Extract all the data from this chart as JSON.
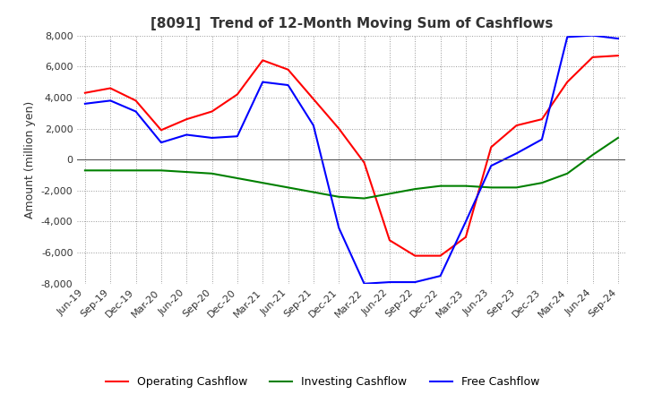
{
  "title": "[8091]  Trend of 12-Month Moving Sum of Cashflows",
  "ylabel": "Amount (million yen)",
  "ylim": [
    -8000,
    8000
  ],
  "yticks": [
    -8000,
    -6000,
    -4000,
    -2000,
    0,
    2000,
    4000,
    6000,
    8000
  ],
  "x_labels": [
    "Jun-19",
    "Sep-19",
    "Dec-19",
    "Mar-20",
    "Jun-20",
    "Sep-20",
    "Dec-20",
    "Mar-21",
    "Jun-21",
    "Sep-21",
    "Dec-21",
    "Mar-22",
    "Jun-22",
    "Sep-22",
    "Dec-22",
    "Mar-23",
    "Jun-23",
    "Sep-23",
    "Dec-23",
    "Mar-24",
    "Jun-24",
    "Sep-24"
  ],
  "operating_cashflow": [
    4300,
    4600,
    3800,
    1900,
    2600,
    3100,
    4200,
    6400,
    5800,
    3900,
    2000,
    -200,
    -5200,
    -6200,
    -6200,
    -5000,
    800,
    2200,
    2600,
    5000,
    6600,
    6700
  ],
  "investing_cashflow": [
    -700,
    -700,
    -700,
    -700,
    -800,
    -900,
    -1200,
    -1500,
    -1800,
    -2100,
    -2400,
    -2500,
    -2200,
    -1900,
    -1700,
    -1700,
    -1800,
    -1800,
    -1500,
    -900,
    300,
    1400
  ],
  "free_cashflow": [
    3600,
    3800,
    3100,
    1100,
    1600,
    1400,
    1500,
    5000,
    4800,
    2200,
    -4400,
    -8000,
    -7900,
    -7900,
    -7500,
    -4000,
    -400,
    400,
    1300,
    7900,
    8000,
    7800
  ],
  "op_color": "#ff0000",
  "inv_color": "#008000",
  "free_color": "#0000ff",
  "bg_color": "#ffffff",
  "grid_color": "#999999",
  "title_fontsize": 11,
  "label_fontsize": 9,
  "tick_fontsize": 8
}
